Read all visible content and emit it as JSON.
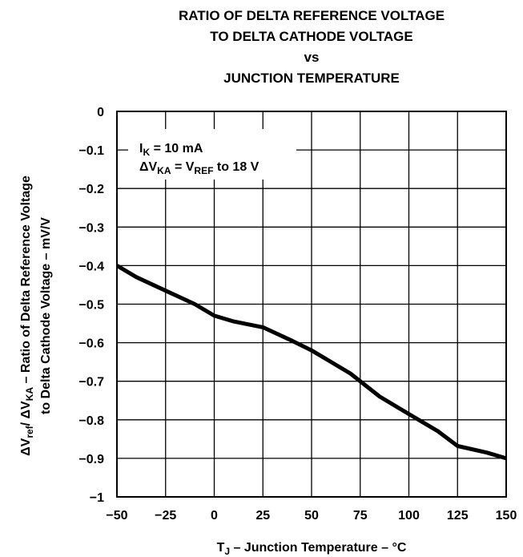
{
  "chart_data": {
    "type": "line",
    "title": [
      "RATIO OF DELTA REFERENCE VOLTAGE",
      "TO DELTA CATHODE VOLTAGE",
      "vs",
      "JUNCTION TEMPERATURE"
    ],
    "xlabel": {
      "prefix": "T",
      "sub": "J",
      "suffix": " – Junction Temperature – °C"
    },
    "ylabel": {
      "line1": {
        "p1": "ΔV",
        "s1": "ref",
        "p2": "/ ΔV",
        "s2": "KA",
        "p3": " – Ratio of Delta Reference Voltage"
      },
      "line2": "to Delta Cathode Voltage – mV/V"
    },
    "xlim": [
      -50,
      150
    ],
    "ylim": [
      -1,
      0
    ],
    "x_ticks": [
      "−50",
      "−25",
      "0",
      "25",
      "50",
      "75",
      "100",
      "125",
      "150"
    ],
    "y_ticks": [
      "0",
      "−0.1",
      "−0.2",
      "−0.3",
      "−0.4",
      "−0.5",
      "−0.6",
      "−0.7",
      "−0.8",
      "−0.9",
      "−1"
    ],
    "grid": true,
    "annotation": {
      "line1": {
        "p1": "I",
        "s1": "K",
        "p2": " = 10 mA"
      },
      "line2": {
        "p1": "ΔV",
        "s1": "KA",
        "p2": " = V",
        "s2": "REF",
        "p3": " to 18 V"
      }
    },
    "series": [
      {
        "x": [
          -50,
          -40,
          -25,
          -10,
          0,
          10,
          25,
          40,
          50,
          60,
          70,
          85,
          100,
          115,
          125,
          140,
          150
        ],
        "y": [
          -0.4,
          -0.43,
          -0.465,
          -0.5,
          -0.53,
          -0.545,
          -0.56,
          -0.595,
          -0.62,
          -0.65,
          -0.68,
          -0.74,
          -0.785,
          -0.83,
          -0.868,
          -0.885,
          -0.9
        ],
        "color": "#000000"
      }
    ]
  }
}
